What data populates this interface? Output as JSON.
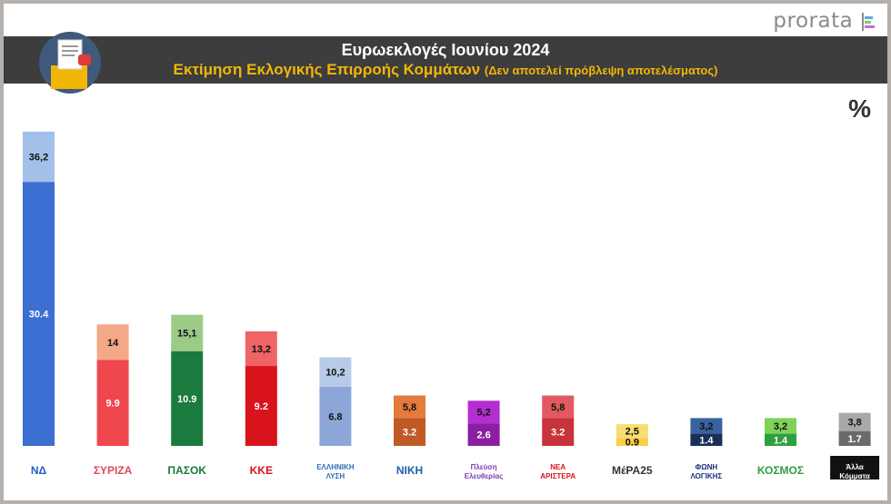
{
  "brand": "prorata",
  "header": {
    "title": "Ευρωεκλογές Ιουνίου 2024",
    "subtitle": "Εκτίμηση Εκλογικής Επιρροής Κομμάτων",
    "subtitle_note": "(Δεν αποτελεί πρόβλεψη αποτελέσματος)"
  },
  "unit_symbol": "%",
  "chart_data": {
    "type": "bar",
    "stacked": true,
    "title": "Ευρωεκλογές Ιουνίου 2024",
    "subtitle": "Εκτίμηση Εκλογικής Επιρροής Κομμάτων (Δεν αποτελεί πρόβλεψη αποτελέσματος)",
    "unit": "%",
    "categories": [
      "ΝΔ",
      "ΣΥΡΙΖΑ",
      "ΠΑΣΟΚ",
      "ΚΚΕ",
      "ΕΛΛΗΝΙΚΗ ΛΥΣΗ",
      "ΝΙΚΗ",
      "Πλεύση Ελευθερίας",
      "ΝΕΑ ΑΡΙΣΤΕΡΑ",
      "ΜέΡΑ25",
      "ΦΩΝΗ ΛΟΓΙΚΗΣ",
      "ΚΟΣΜΟΣ",
      "Άλλα Κόμματα"
    ],
    "logo_texts": [
      "ΝΔ",
      "ΣΥΡΙΖΑ",
      "ΠΑΣΟΚ",
      "ΚΚΕ",
      "ΕΛΛΗΝΙΚΗ ΛΥΣΗ",
      "ΝΙΚΗ",
      "Πλεύση Ελευθερίας",
      "ΝΕΑ ΑΡΙΣΤΕΡΑ",
      "ΜέΡΑ25",
      "ΦΩΝΗ ΛΟΓΙΚΗΣ",
      "ΚΟΣΜΟΣ",
      "Άλλα Κόμματα"
    ],
    "base_values": [
      30.4,
      9.9,
      10.9,
      9.2,
      6.8,
      3.2,
      2.6,
      3.2,
      0.9,
      1.4,
      1.4,
      1.7
    ],
    "total_values": [
      36.2,
      14,
      15.1,
      13.2,
      10.2,
      5.8,
      5.2,
      5.8,
      2.5,
      3.2,
      3.2,
      3.8
    ],
    "base_labels": [
      "30.4",
      "9.9",
      "10.9",
      "9.2",
      "6.8",
      "3.2",
      "2.6",
      "3.2",
      "0.9",
      "1.4",
      "1.4",
      "1.7"
    ],
    "total_labels": [
      "36,2",
      "14",
      "15,1",
      "13,2",
      "10,2",
      "5,8",
      "5,2",
      "5,8",
      "2,5",
      "3,2",
      "3,2",
      "3,8"
    ],
    "base_colors": [
      "#3b6fd1",
      "#f0474f",
      "#1b7a3e",
      "#d9131b",
      "#8ca6d8",
      "#bf5a26",
      "#8b1fa3",
      "#c8323a",
      "#f8cf45",
      "#1a2e5a",
      "#2e9e3e",
      "#6a6a6a"
    ],
    "top_colors": [
      "#a3c1e8",
      "#f3a987",
      "#9ccb88",
      "#ef6464",
      "#b8cbe8",
      "#e47a3c",
      "#b52ed1",
      "#e25a61",
      "#f8dd70",
      "#3a62a0",
      "#7fd15a",
      "#a8a8a8"
    ],
    "logo_colors": [
      "#1c5fc7",
      "#e0475a",
      "#1b7a3e",
      "#d9131b",
      "#2e6fb3",
      "#1f5fa8",
      "#7b3fb0",
      "#d9131b",
      "#333333",
      "#1a2e7a",
      "#2e9e3e",
      "#ffffff"
    ],
    "ylim": [
      0,
      40
    ]
  }
}
